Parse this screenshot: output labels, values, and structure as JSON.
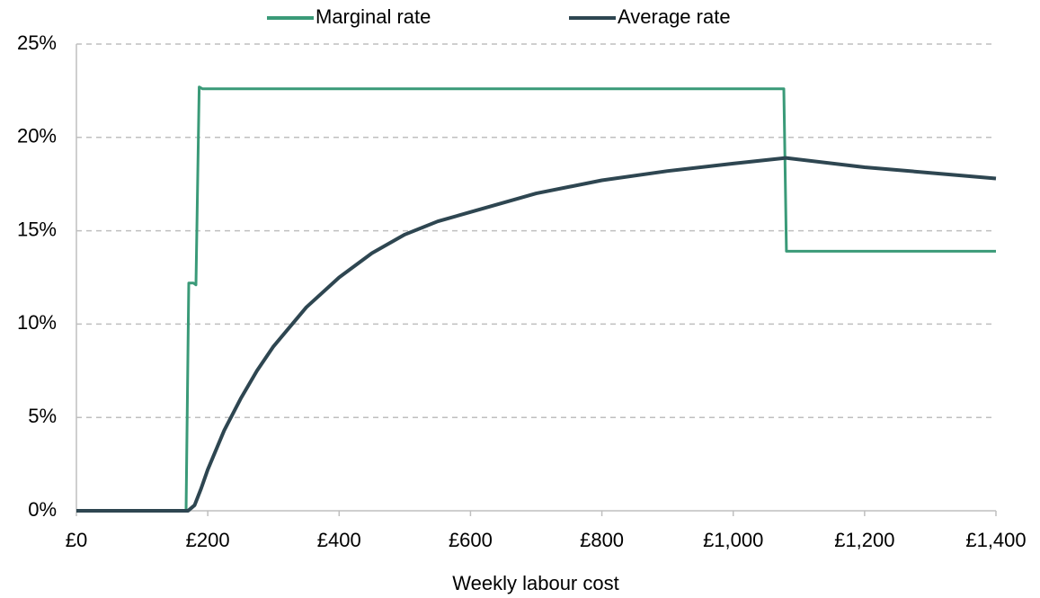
{
  "chart_data": {
    "type": "line",
    "x_label": "Weekly labour cost",
    "xlim": [
      0,
      1400
    ],
    "xticks": [
      {
        "value": 0,
        "label": "£0"
      },
      {
        "value": 200,
        "label": "£200"
      },
      {
        "value": 400,
        "label": "£400"
      },
      {
        "value": 600,
        "label": "£600"
      },
      {
        "value": 800,
        "label": "£800"
      },
      {
        "value": 1000,
        "label": "£1,000"
      },
      {
        "value": 1200,
        "label": "£1,200"
      },
      {
        "value": 1400,
        "label": "£1,400"
      }
    ],
    "ylim": [
      0,
      25
    ],
    "yticks": [
      {
        "value": 0,
        "label": "0%"
      },
      {
        "value": 5,
        "label": "5%"
      },
      {
        "value": 10,
        "label": "10%"
      },
      {
        "value": 15,
        "label": "15%"
      },
      {
        "value": 20,
        "label": "20%"
      },
      {
        "value": 25,
        "label": "25%"
      }
    ],
    "grid": true,
    "legend": "top",
    "series": [
      {
        "name": "Marginal rate",
        "color": "#3a9a78",
        "x": [
          0,
          167,
          171,
          178,
          182,
          187,
          192,
          1077,
          1081,
          1084,
          1400
        ],
        "values": [
          0,
          0,
          12.2,
          12.2,
          12.1,
          22.7,
          22.6,
          22.6,
          13.9,
          13.9,
          13.9
        ]
      },
      {
        "name": "Average rate",
        "color": "#2e4651",
        "x": [
          0,
          170,
          180,
          190,
          200,
          225,
          250,
          275,
          300,
          350,
          400,
          450,
          500,
          550,
          600,
          700,
          800,
          900,
          1000,
          1080,
          1200,
          1300,
          1400
        ],
        "values": [
          0,
          0,
          0.3,
          1.2,
          2.2,
          4.3,
          6.0,
          7.5,
          8.8,
          10.9,
          12.5,
          13.8,
          14.8,
          15.5,
          16.0,
          17.0,
          17.7,
          18.2,
          18.6,
          18.9,
          18.4,
          18.1,
          17.8
        ]
      }
    ]
  }
}
